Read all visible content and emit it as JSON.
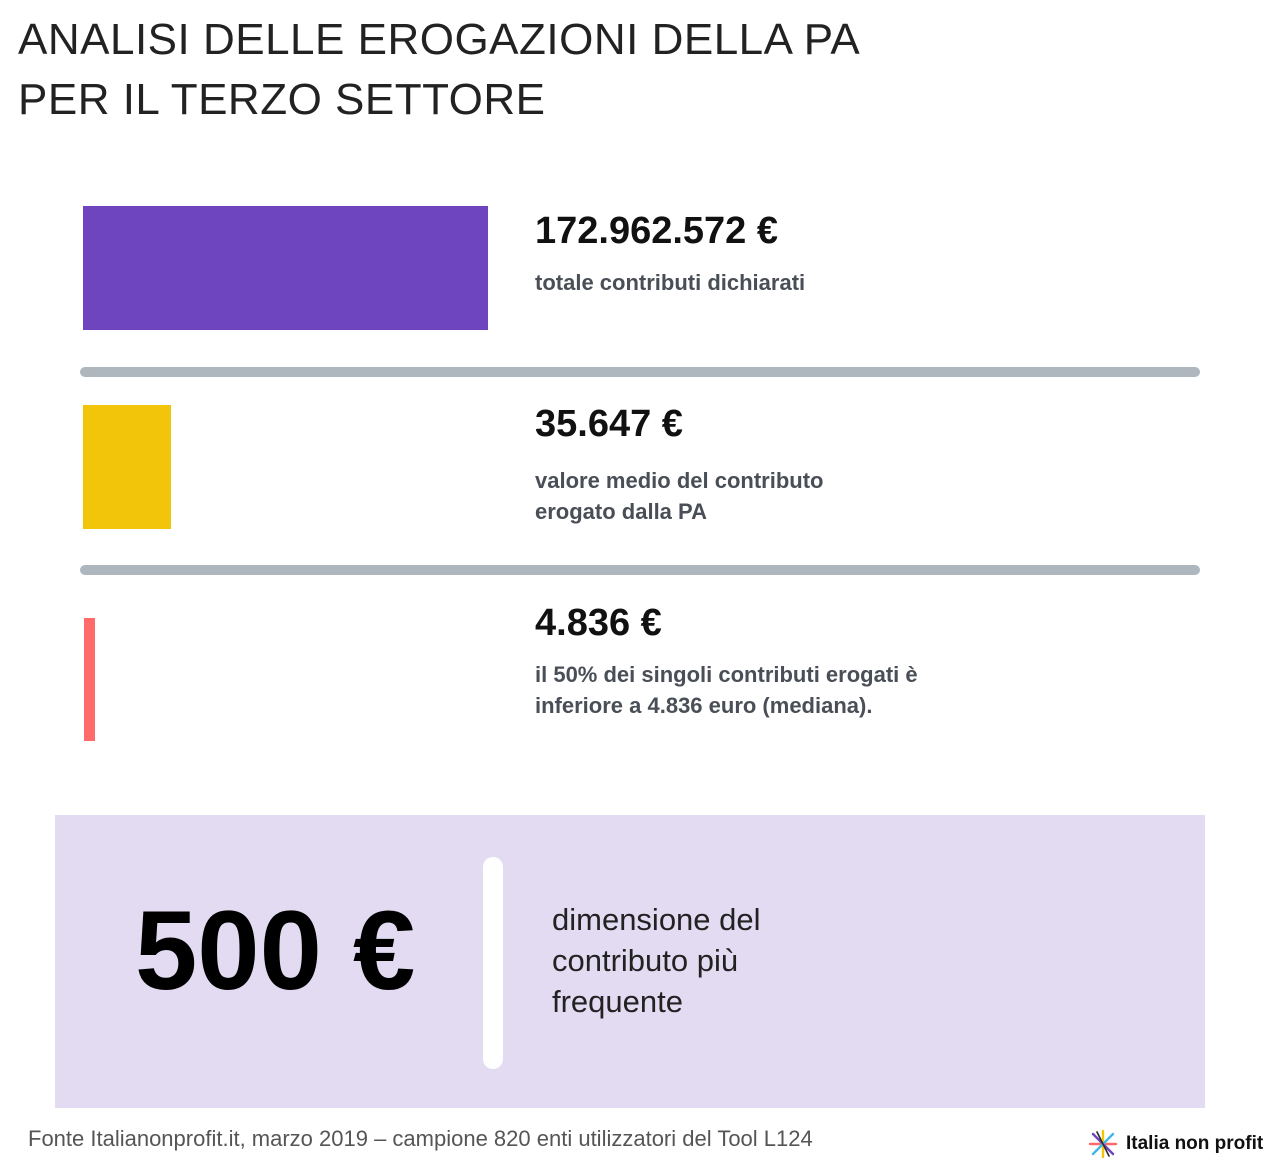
{
  "title": {
    "line1": "ANALISI DELLE EROGAZIONI DELLA PA",
    "line2": "PER IL TERZO SETTORE"
  },
  "chart_data": {
    "type": "bar",
    "orientation": "horizontal",
    "title": "ANALISI DELLE EROGAZIONI DELLA PA PER IL TERZO SETTORE",
    "grid": false,
    "items": [
      {
        "value_label": "172.962.572 €",
        "description": "totale contributi dichiarati",
        "color": "#6e44bf"
      },
      {
        "value_label": "35.647 €",
        "description_lines": [
          "valore medio del contributo",
          "erogato dalla PA"
        ],
        "color": "#f2c50a"
      },
      {
        "value_label": "4.836 €",
        "description_lines": [
          "il 50% dei singoli contributi erogati è",
          "inferiore a 4.836 euro (mediana)."
        ],
        "color": "#ff6b6b"
      }
    ]
  },
  "callout": {
    "value": "500 €",
    "description_lines": [
      "dimensione del",
      "contributo più",
      "frequente"
    ],
    "background": "#e3dbf2"
  },
  "footer": {
    "source": "Fonte Italianonprofit.it, marzo 2019 – campione 820 enti utilizzatori del Tool L124",
    "logo_text": "Italia non profit",
    "logo_icon": "starburst-icon"
  }
}
